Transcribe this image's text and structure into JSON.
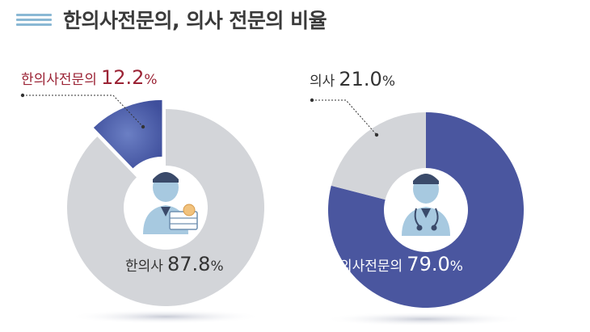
{
  "header": {
    "title": "한의사전문의, 의사 전문의 비율"
  },
  "colors": {
    "gray": "#d3d5d9",
    "left_highlight": "#4a5aa6",
    "right_main": "#4a569f",
    "label_red": "#9b2335"
  },
  "icons": {
    "left_center": "korean-medicine-doctor-icon",
    "right_center": "doctor-stethoscope-icon"
  },
  "chart_data": [
    {
      "type": "pie",
      "slices": [
        {
          "label": "한의사전문의",
          "value": 12.2,
          "unit": "%"
        },
        {
          "label": "한의사",
          "value": 87.8,
          "unit": "%"
        }
      ]
    },
    {
      "type": "pie",
      "slices": [
        {
          "label": "의사",
          "value": 21.0,
          "unit": "%"
        },
        {
          "label": "의사전문의",
          "value": 79.0,
          "unit": "%"
        }
      ]
    }
  ]
}
